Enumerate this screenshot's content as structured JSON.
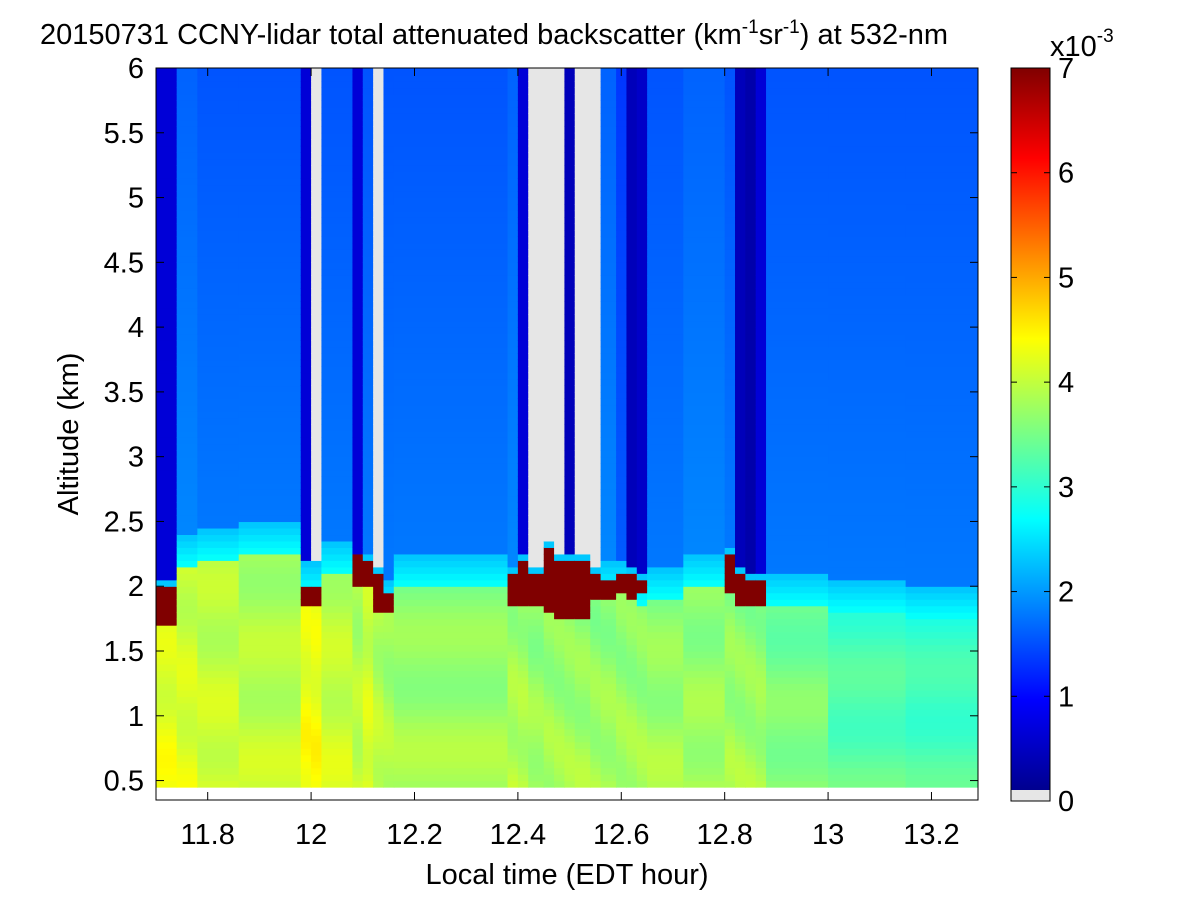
{
  "chart_data": {
    "type": "heatmap",
    "title": {
      "date": "20150731",
      "main": "CCNY-lidar total attenuated backscatter (km",
      "exp1": "-1",
      "mid": "sr",
      "exp2": "-1",
      "tail": ") at 532-nm"
    },
    "xlabel": "Local time (EDT hour)",
    "ylabel": "Altitude (km)",
    "xlim": [
      11.7,
      13.29
    ],
    "ylim": [
      0.35,
      6.0
    ],
    "x_ticks": [
      "11.8",
      "12",
      "12.2",
      "12.4",
      "12.6",
      "12.8",
      "13",
      "13.2"
    ],
    "x_tick_values": [
      11.8,
      12.0,
      12.2,
      12.4,
      12.6,
      12.8,
      13.0,
      13.2
    ],
    "y_ticks": [
      "0.5",
      "1",
      "1.5",
      "2",
      "2.5",
      "3",
      "3.5",
      "4",
      "4.5",
      "5",
      "5.5",
      "6"
    ],
    "y_tick_values": [
      0.5,
      1.0,
      1.5,
      2.0,
      2.5,
      3.0,
      3.5,
      4.0,
      4.5,
      5.0,
      5.5,
      6.0
    ],
    "data_y_range": [
      0.45,
      6.0
    ],
    "colorbar": {
      "range": [
        0,
        7
      ],
      "ticks": [
        "0",
        "1",
        "2",
        "3",
        "4",
        "5",
        "6",
        "7"
      ],
      "tick_values": [
        0,
        1,
        2,
        3,
        4,
        5,
        6,
        7
      ],
      "multiplier_base": "x10",
      "multiplier_exp": "-3",
      "colormap": "jet",
      "nodata_color": "#e6e6e6"
    },
    "grid": false,
    "profiles": [
      {
        "t0": 11.7,
        "t1": 11.74,
        "pbl": 2.0,
        "aloft": 0.6,
        "low": 4.3,
        "cloud": [
          1.7,
          2.0
        ]
      },
      {
        "t0": 11.74,
        "t1": 11.78,
        "pbl": 2.35,
        "aloft": 1.8,
        "low": 4.2
      },
      {
        "t0": 11.78,
        "t1": 11.86,
        "pbl": 2.4,
        "aloft": 1.7,
        "low": 4.1
      },
      {
        "t0": 11.86,
        "t1": 11.98,
        "pbl": 2.45,
        "aloft": 1.7,
        "low": 4.0
      },
      {
        "t0": 11.98,
        "t1": 12.0,
        "pbl": 2.15,
        "aloft": 0.6,
        "low": 4.4,
        "cloud": [
          1.85,
          2.0
        ]
      },
      {
        "t0": 12.0,
        "t1": 12.02,
        "pbl": 2.15,
        "aloft": -1,
        "low": 4.4,
        "cloud": [
          1.85,
          2.0
        ]
      },
      {
        "t0": 12.02,
        "t1": 12.08,
        "pbl": 2.3,
        "aloft": 1.7,
        "low": 4.1
      },
      {
        "t0": 12.08,
        "t1": 12.1,
        "pbl": 2.2,
        "aloft": 0.6,
        "low": 4.0,
        "cloud": [
          2.0,
          2.3
        ]
      },
      {
        "t0": 12.1,
        "t1": 12.12,
        "pbl": 2.2,
        "aloft": 1.7,
        "low": 4.2,
        "cloud": [
          2.0,
          2.2
        ]
      },
      {
        "t0": 12.12,
        "t1": 12.14,
        "pbl": 2.1,
        "aloft": -1,
        "low": 4.0,
        "cloud": [
          1.8,
          2.1
        ]
      },
      {
        "t0": 12.14,
        "t1": 12.16,
        "pbl": 2.0,
        "aloft": 1.7,
        "low": 3.9,
        "cloud": [
          1.8,
          1.95
        ]
      },
      {
        "t0": 12.16,
        "t1": 12.38,
        "pbl": 2.2,
        "aloft": 1.7,
        "low": 3.8
      },
      {
        "t0": 12.38,
        "t1": 12.4,
        "pbl": 2.1,
        "aloft": 1.8,
        "low": 3.9,
        "cloud": [
          1.85,
          2.1
        ]
      },
      {
        "t0": 12.4,
        "t1": 12.42,
        "pbl": 2.2,
        "aloft": 0.6,
        "low": 3.9,
        "cloud": [
          1.85,
          2.2
        ]
      },
      {
        "t0": 12.42,
        "t1": 12.45,
        "pbl": 2.1,
        "aloft": -1,
        "low": 3.8,
        "cloud": [
          1.85,
          2.1
        ]
      },
      {
        "t0": 12.45,
        "t1": 12.47,
        "pbl": 2.3,
        "aloft": -1,
        "low": 3.8,
        "cloud": [
          1.8,
          2.3
        ]
      },
      {
        "t0": 12.47,
        "t1": 12.49,
        "pbl": 2.2,
        "aloft": -1,
        "low": 3.8,
        "cloud": [
          1.75,
          2.2
        ]
      },
      {
        "t0": 12.49,
        "t1": 12.51,
        "pbl": 2.2,
        "aloft": 0.4,
        "low": 3.8,
        "cloud": [
          1.75,
          2.2
        ]
      },
      {
        "t0": 12.51,
        "t1": 12.54,
        "pbl": 2.2,
        "aloft": -1,
        "low": 3.8,
        "cloud": [
          1.75,
          2.2
        ]
      },
      {
        "t0": 12.54,
        "t1": 12.56,
        "pbl": 2.1,
        "aloft": -1,
        "low": 3.8,
        "cloud": [
          1.9,
          2.1
        ]
      },
      {
        "t0": 12.56,
        "t1": 12.59,
        "pbl": 2.15,
        "aloft": 1.8,
        "low": 3.8,
        "cloud": [
          1.9,
          2.05
        ]
      },
      {
        "t0": 12.59,
        "t1": 12.61,
        "pbl": 2.15,
        "aloft": 1.5,
        "low": 3.8,
        "cloud": [
          1.95,
          2.1
        ]
      },
      {
        "t0": 12.61,
        "t1": 12.63,
        "pbl": 2.1,
        "aloft": 0.4,
        "low": 3.8,
        "cloud": [
          1.9,
          2.1
        ]
      },
      {
        "t0": 12.63,
        "t1": 12.65,
        "pbl": 2.05,
        "aloft": 0.5,
        "low": 3.8,
        "cloud": [
          1.95,
          2.05
        ]
      },
      {
        "t0": 12.65,
        "t1": 12.72,
        "pbl": 2.1,
        "aloft": 1.7,
        "low": 3.8
      },
      {
        "t0": 12.72,
        "t1": 12.8,
        "pbl": 2.2,
        "aloft": 1.8,
        "low": 3.8
      },
      {
        "t0": 12.8,
        "t1": 12.82,
        "pbl": 2.25,
        "aloft": 1.7,
        "low": 3.8,
        "cloud": [
          1.95,
          2.25
        ]
      },
      {
        "t0": 12.82,
        "t1": 12.84,
        "pbl": 2.1,
        "aloft": 0.4,
        "low": 3.8,
        "cloud": [
          1.85,
          2.1
        ]
      },
      {
        "t0": 12.84,
        "t1": 12.86,
        "pbl": 2.05,
        "aloft": 0.3,
        "low": 3.8,
        "cloud": [
          1.85,
          2.05
        ]
      },
      {
        "t0": 12.86,
        "t1": 12.88,
        "pbl": 2.05,
        "aloft": 0.6,
        "low": 3.8,
        "cloud": [
          1.85,
          2.05
        ]
      },
      {
        "t0": 12.88,
        "t1": 13.0,
        "pbl": 2.05,
        "aloft": 1.7,
        "low": 3.6
      },
      {
        "t0": 13.0,
        "t1": 13.15,
        "pbl": 2.0,
        "aloft": 1.7,
        "low": 3.3
      },
      {
        "t0": 13.15,
        "t1": 13.29,
        "pbl": 1.95,
        "aloft": 1.7,
        "low": 3.2
      }
    ]
  }
}
